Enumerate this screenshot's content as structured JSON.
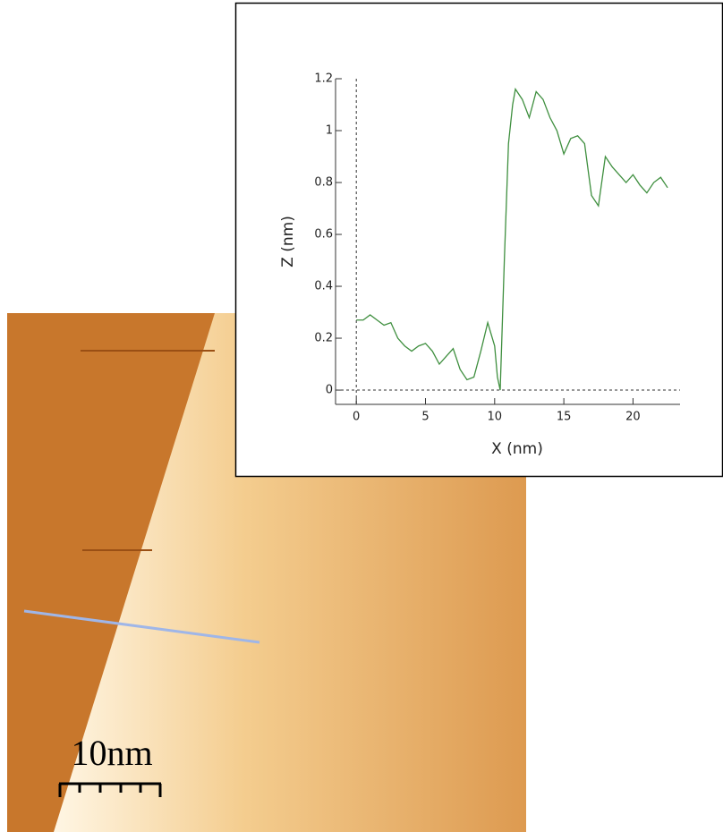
{
  "chart_data": {
    "type": "line",
    "x_label": "X (nm)",
    "y_label": "Z (nm)",
    "x": [
      0,
      0.5,
      1,
      1.5,
      2,
      2.5,
      3,
      3.5,
      4,
      4.5,
      5,
      5.5,
      6,
      6.5,
      7,
      7.5,
      8,
      8.5,
      9,
      9.5,
      10,
      10.2,
      10.4,
      10.7,
      11,
      11.3,
      11.5,
      12,
      12.5,
      13,
      13.5,
      14,
      14.5,
      15,
      15.5,
      16,
      16.5,
      17,
      17.5,
      18,
      18.5,
      19,
      19.5,
      20,
      20.5,
      21,
      21.5,
      22,
      22.5
    ],
    "series": [
      {
        "color": "#3f8f3f",
        "values": [
          0.27,
          0.27,
          0.29,
          0.27,
          0.25,
          0.26,
          0.2,
          0.17,
          0.15,
          0.17,
          0.18,
          0.15,
          0.1,
          0.13,
          0.16,
          0.08,
          0.04,
          0.05,
          0.15,
          0.26,
          0.17,
          0.05,
          0.0,
          0.5,
          0.95,
          1.1,
          1.16,
          1.12,
          1.05,
          1.15,
          1.12,
          1.05,
          1.0,
          0.91,
          0.97,
          0.98,
          0.95,
          0.75,
          0.71,
          0.9,
          0.86,
          0.83,
          0.8,
          0.83,
          0.79,
          0.76,
          0.8,
          0.82,
          0.78
        ]
      }
    ],
    "xlim": [
      -1.5,
      23.4
    ],
    "ylim": [
      -0.055,
      1.2
    ],
    "xticks": [
      0,
      5,
      10,
      15,
      20
    ],
    "yticks": [
      0,
      0.2,
      0.4,
      0.6,
      0.8,
      1,
      1.2
    ]
  },
  "scale_bar": {
    "label": "10nm"
  }
}
